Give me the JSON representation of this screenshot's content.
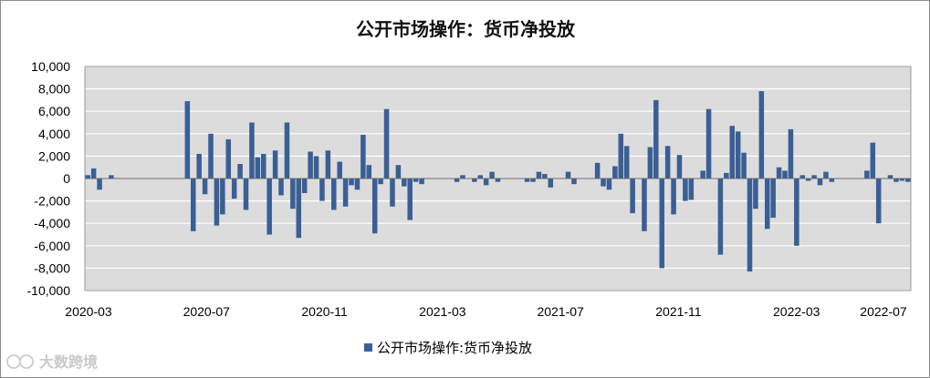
{
  "chart_data": {
    "type": "bar",
    "title": "公开市场操作：货币净投放",
    "xlabel": "",
    "ylabel": "",
    "ylim": [
      -10000,
      10000
    ],
    "y_ticks": [
      "10,000",
      "8,000",
      "6,000",
      "4,000",
      "2,000",
      "0",
      "-2,000",
      "-4,000",
      "-6,000",
      "-8,000",
      "-10,000"
    ],
    "x_ticks": [
      "2020-03",
      "2020-07",
      "2020-11",
      "2021-03",
      "2021-07",
      "2021-11",
      "2022-03",
      "2022-07"
    ],
    "grid": true,
    "legend_position": "bottom",
    "colors": {
      "bar": "#3a5f95",
      "plot_bg": "#dcdcdc",
      "grid": "#ffffff"
    },
    "series": [
      {
        "name": "公开市场操作:货币净投放",
        "values": [
          300,
          900,
          -1000,
          0,
          300,
          0,
          0,
          0,
          0,
          0,
          0,
          0,
          0,
          0,
          0,
          0,
          0,
          6900,
          -4700,
          2200,
          -1400,
          4000,
          -4200,
          -3200,
          3500,
          -1800,
          1300,
          -2800,
          5000,
          1900,
          2200,
          -5000,
          2500,
          -1500,
          5000,
          -2700,
          -5300,
          -1300,
          2400,
          2000,
          -2000,
          2500,
          -2800,
          1500,
          -2500,
          -600,
          -1000,
          3900,
          1200,
          -4900,
          -500,
          6200,
          -2500,
          1200,
          -700,
          -3700,
          -300,
          -500,
          0,
          0,
          0,
          0,
          0,
          -300,
          300,
          0,
          -300,
          300,
          -600,
          600,
          -300,
          0,
          0,
          0,
          0,
          -300,
          -300,
          600,
          400,
          -800,
          0,
          0,
          600,
          -500,
          0,
          0,
          0,
          1400,
          -700,
          -1000,
          1100,
          4000,
          2900,
          -3100,
          0,
          -4700,
          2800,
          7000,
          -8000,
          2900,
          -3200,
          2100,
          -2000,
          -1900,
          0,
          700,
          6200,
          0,
          -6800,
          500,
          4700,
          4200,
          2300,
          -8300,
          -2700,
          7800,
          -4500,
          -3500,
          1000,
          700,
          4400,
          -6000,
          300,
          -200,
          300,
          -600,
          600,
          -300,
          0,
          0,
          0,
          0,
          0,
          700,
          3200,
          -4000,
          0,
          300,
          -300,
          -200,
          -300
        ]
      }
    ],
    "watermark": "大数跨境"
  }
}
